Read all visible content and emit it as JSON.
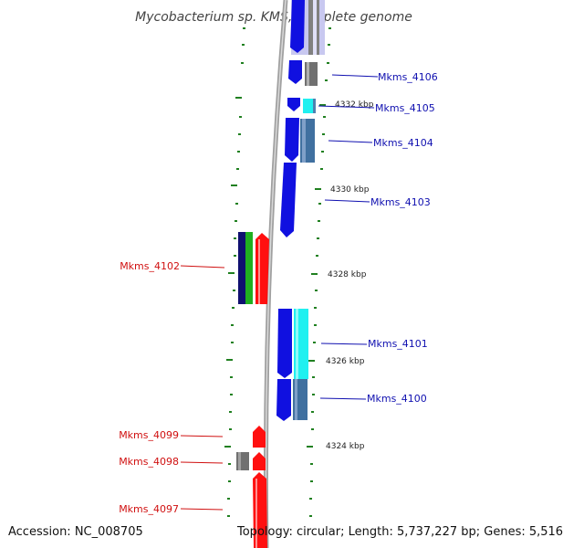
{
  "title": "Mycobacterium sp. KMS, complete genome",
  "accession": "Accession: NC_008705",
  "topology": "Topology: circular; Length: 5,737,227 bp; Genes: 5,516",
  "colors": {
    "blue": "#1010e0",
    "red": "#ff1010",
    "cyan": "#20f0f0",
    "steel": "#5080b0",
    "gray": "#707070",
    "green": "#20a020",
    "navy": "#101070",
    "backbone": "#909090",
    "tick": "#208020"
  },
  "gene_labels": [
    {
      "text": "Mkms_4106",
      "strand": "forward"
    },
    {
      "text": "Mkms_4105",
      "strand": "forward"
    },
    {
      "text": "Mkms_4104",
      "strand": "forward"
    },
    {
      "text": "Mkms_4103",
      "strand": "forward"
    },
    {
      "text": "Mkms_4102",
      "strand": "reverse"
    },
    {
      "text": "Mkms_4101",
      "strand": "forward"
    },
    {
      "text": "Mkms_4100",
      "strand": "forward"
    },
    {
      "text": "Mkms_4099",
      "strand": "reverse"
    },
    {
      "text": "Mkms_4098",
      "strand": "reverse"
    },
    {
      "text": "Mkms_4097",
      "strand": "reverse"
    }
  ],
  "kbp_labels": [
    "4332 kbp",
    "4330 kbp",
    "4328 kbp",
    "4326 kbp",
    "4324 kbp"
  ]
}
